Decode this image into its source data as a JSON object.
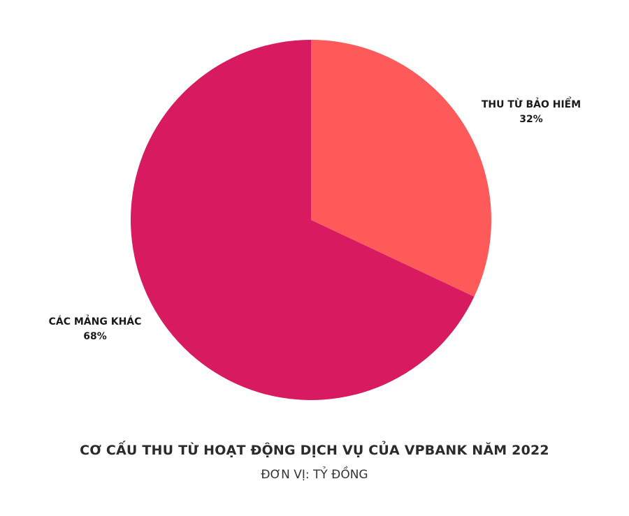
{
  "chart_data": {
    "type": "pie",
    "title": "CƠ CẤU THU TỪ HOẠT ĐỘNG DỊCH VỤ CỦA VPBANK NĂM 2022",
    "subtitle": "ĐƠN VỊ: TỶ ĐỒNG",
    "slices": [
      {
        "label": "THU TỪ BẢO HIỂM",
        "value": 32,
        "display": "32%",
        "color": "#ff5a5a"
      },
      {
        "label": "CÁC MẢNG KHÁC",
        "value": 68,
        "display": "68%",
        "color": "#d81b60"
      }
    ]
  }
}
